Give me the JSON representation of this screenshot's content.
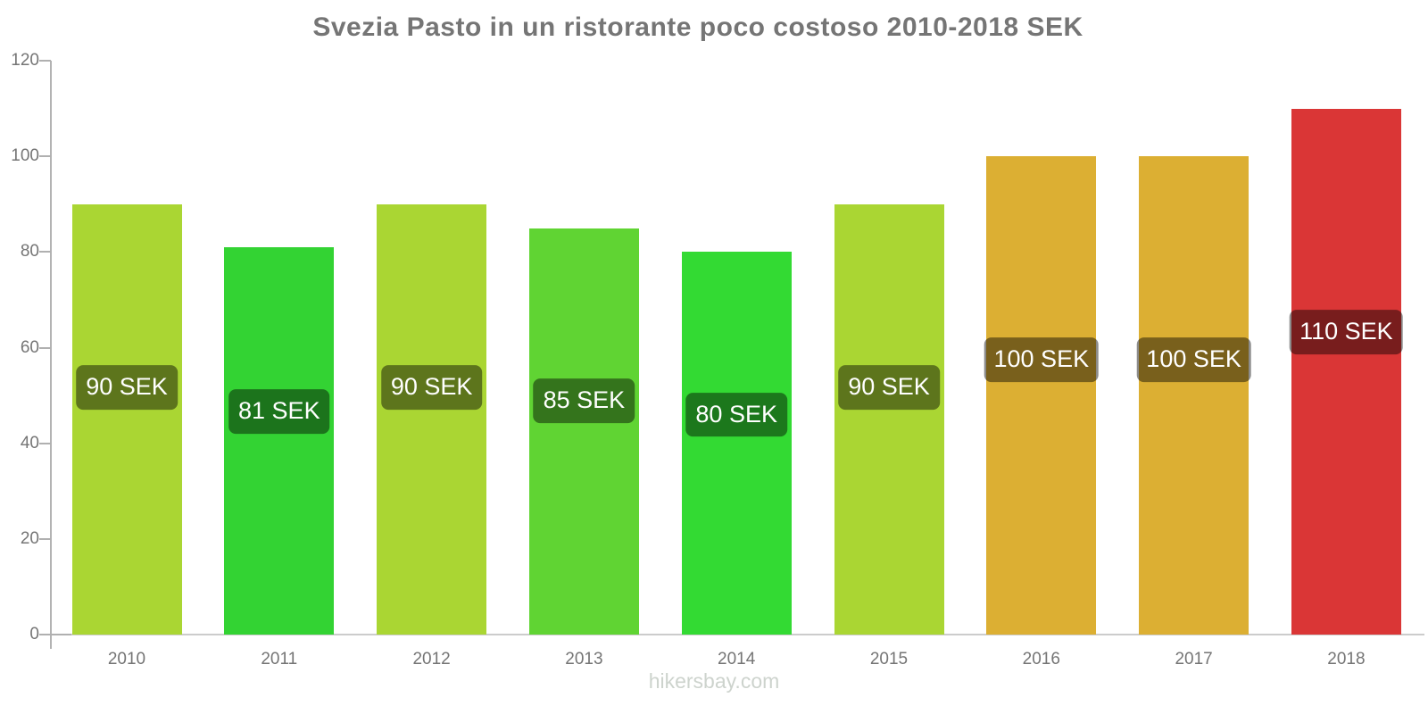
{
  "title": "Svezia Pasto in un ristorante poco costoso 2010-2018 SEK",
  "watermark": "hikersbay.com",
  "chart_data": {
    "type": "bar",
    "title": "Svezia Pasto in un ristorante poco costoso 2010-2018 SEK",
    "categories": [
      "2010",
      "2011",
      "2012",
      "2013",
      "2014",
      "2015",
      "2016",
      "2017",
      "2018"
    ],
    "values": [
      90,
      81,
      90,
      85,
      80,
      90,
      100,
      100,
      110
    ],
    "value_labels": [
      "90 SEK",
      "81 SEK",
      "90 SEK",
      "85 SEK",
      "80 SEK",
      "90 SEK",
      "100 SEK",
      "100 SEK",
      "110 SEK"
    ],
    "bar_colors": [
      "#aad633",
      "#33d333",
      "#aad633",
      "#60d433",
      "#33da33",
      "#aad633",
      "#dcaf33",
      "#dcaf33",
      "#da3636"
    ],
    "unit": "SEK",
    "xlabel": "",
    "ylabel": "",
    "ylim": [
      0,
      120
    ],
    "yticks": [
      0,
      20,
      40,
      60,
      80,
      100,
      120
    ],
    "grid": false,
    "legend": false,
    "label_badge_color": "rgba(0,0,0,0.45)",
    "label_text_color": "#ffffff"
  },
  "colors": {
    "background": "#ffffff",
    "title_text": "#757575",
    "axis_line": "#b3b3b3",
    "baseline": "#cccccc",
    "tick_text": "#757575",
    "watermark_text": "#cdd3cd"
  }
}
